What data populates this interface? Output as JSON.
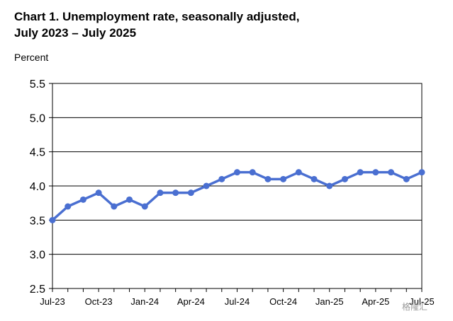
{
  "header": {
    "title_line1": "Chart 1. Unemployment rate, seasonally adjusted,",
    "title_line2": "July 2023 – July 2025"
  },
  "chart_data": {
    "type": "line",
    "title": "Chart 1. Unemployment rate, seasonally adjusted, July 2023 – July 2025",
    "ylabel": "Percent",
    "xlabel": "",
    "ylim": [
      2.5,
      5.5
    ],
    "yticks": [
      2.5,
      3.0,
      3.5,
      4.0,
      4.5,
      5.0,
      5.5
    ],
    "ytick_labels": [
      "2.5",
      "3.0",
      "3.5",
      "4.0",
      "4.5",
      "5.0",
      "5.5"
    ],
    "grid": true,
    "legend": "none",
    "categories": [
      "Jul-23",
      "Aug-23",
      "Sep-23",
      "Oct-23",
      "Nov-23",
      "Dec-23",
      "Jan-24",
      "Feb-24",
      "Mar-24",
      "Apr-24",
      "May-24",
      "Jun-24",
      "Jul-24",
      "Aug-24",
      "Sep-24",
      "Oct-24",
      "Nov-24",
      "Dec-24",
      "Jan-25",
      "Feb-25",
      "Mar-25",
      "Apr-25",
      "May-25",
      "Jun-25",
      "Jul-25"
    ],
    "xtick_labels": [
      "Jul-23",
      "Oct-23",
      "Jan-24",
      "Apr-24",
      "Jul-24",
      "Oct-24",
      "Jan-25",
      "Apr-25",
      "Jul-25"
    ],
    "series": [
      {
        "color": "#4a6fd1",
        "values": [
          3.5,
          3.7,
          3.8,
          3.9,
          3.7,
          3.8,
          3.7,
          3.9,
          3.9,
          3.9,
          4.0,
          4.1,
          4.2,
          4.2,
          4.1,
          4.1,
          4.2,
          4.1,
          4.0,
          4.1,
          4.2,
          4.2,
          4.2,
          4.1,
          4.2
        ]
      }
    ]
  },
  "watermark": {
    "text": "格隆汇"
  }
}
